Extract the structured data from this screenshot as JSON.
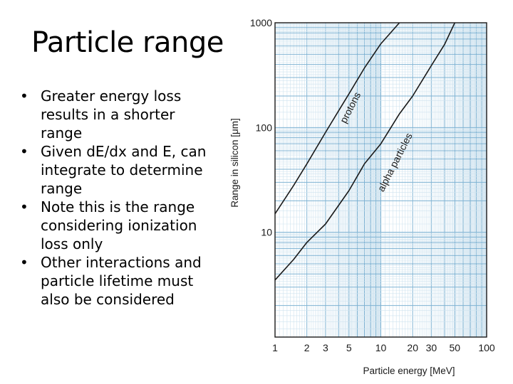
{
  "slide": {
    "title": "Particle range",
    "bullets": [
      "Greater energy loss results in a shorter range",
      "Given dE/dx and E, can integrate to determine range",
      "Note this is the range considering ionization loss only",
      "Other interactions and particle lifetime must also be considered"
    ]
  },
  "chart_data": {
    "type": "line",
    "xscale": "log",
    "yscale": "log",
    "xlabel": "Particle energy [MeV]",
    "ylabel": "Range in silicon [μm]",
    "xlim": [
      1,
      100
    ],
    "ylim": [
      1,
      1000
    ],
    "xticks": [
      1,
      2,
      3,
      5,
      10,
      20,
      30,
      50,
      100
    ],
    "xtick_labels": [
      "1",
      "2",
      "3",
      "5",
      "10",
      "20",
      "30",
      "50",
      "100"
    ],
    "yticks": [
      10,
      100,
      1000
    ],
    "ytick_labels": [
      "10",
      "100",
      "1000"
    ],
    "grid": true,
    "series": [
      {
        "name": "protons",
        "x": [
          1,
          1.5,
          2,
          3,
          4,
          5,
          7,
          10,
          15,
          20
        ],
        "y": [
          15,
          28,
          45,
          90,
          145,
          210,
          370,
          630,
          1000,
          1000
        ]
      },
      {
        "name": "alpha particles",
        "x": [
          1,
          1.5,
          2,
          3,
          5,
          7,
          10,
          15,
          20,
          30,
          40,
          50
        ],
        "y": [
          3.5,
          5.5,
          8,
          12,
          25,
          45,
          70,
          135,
          200,
          390,
          620,
          1000
        ]
      }
    ]
  }
}
